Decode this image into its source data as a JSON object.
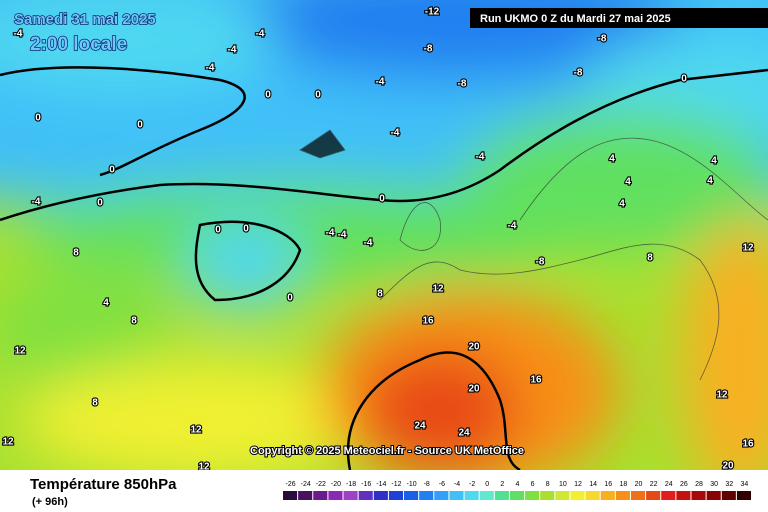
{
  "header": {
    "date": "Samedi 31 mai 2025",
    "time": "2:00 locale",
    "run": "Run UKMO 0 Z du Mardi 27 mai 2025"
  },
  "footer": {
    "title": "Température 850hPa",
    "lead": "(+ 96h)",
    "copyright": "Copyright © 2025 Meteociel.fr - Source UK MetOffice"
  },
  "legend": {
    "values": [
      -26,
      -24,
      -22,
      -20,
      -18,
      -16,
      -14,
      -12,
      -10,
      -8,
      -6,
      -4,
      -2,
      0,
      2,
      4,
      6,
      8,
      10,
      12,
      14,
      16,
      18,
      20,
      22,
      24,
      26,
      28,
      30,
      32,
      34
    ],
    "colors": [
      "#2b0a3d",
      "#4a1160",
      "#6a1b8a",
      "#8a2ab0",
      "#a040c8",
      "#6030c0",
      "#3030c8",
      "#2040d8",
      "#1860e8",
      "#2080f0",
      "#30a0f8",
      "#40c0f8",
      "#50d8f0",
      "#60e8d0",
      "#50e090",
      "#60e060",
      "#80e040",
      "#a8e030",
      "#d0e830",
      "#f0f030",
      "#f8d828",
      "#f8b020",
      "#f89018",
      "#f07018",
      "#e84818",
      "#e02018",
      "#c81010",
      "#a80808",
      "#880404",
      "#600202",
      "#300000"
    ]
  },
  "contour_labels": [
    -12,
    -8,
    -8,
    -8,
    -8,
    -4,
    -4,
    -4,
    -4,
    -4,
    -4,
    -4,
    -4,
    0,
    0,
    0,
    0,
    0,
    0,
    0,
    0,
    0,
    0,
    0,
    4,
    4,
    4,
    4,
    4,
    4,
    -4,
    -4,
    -4,
    -4,
    8,
    8,
    8,
    8,
    8,
    12,
    12,
    12,
    12,
    12,
    12,
    12,
    16,
    16,
    16,
    20,
    20,
    24,
    24,
    20,
    -8
  ]
}
